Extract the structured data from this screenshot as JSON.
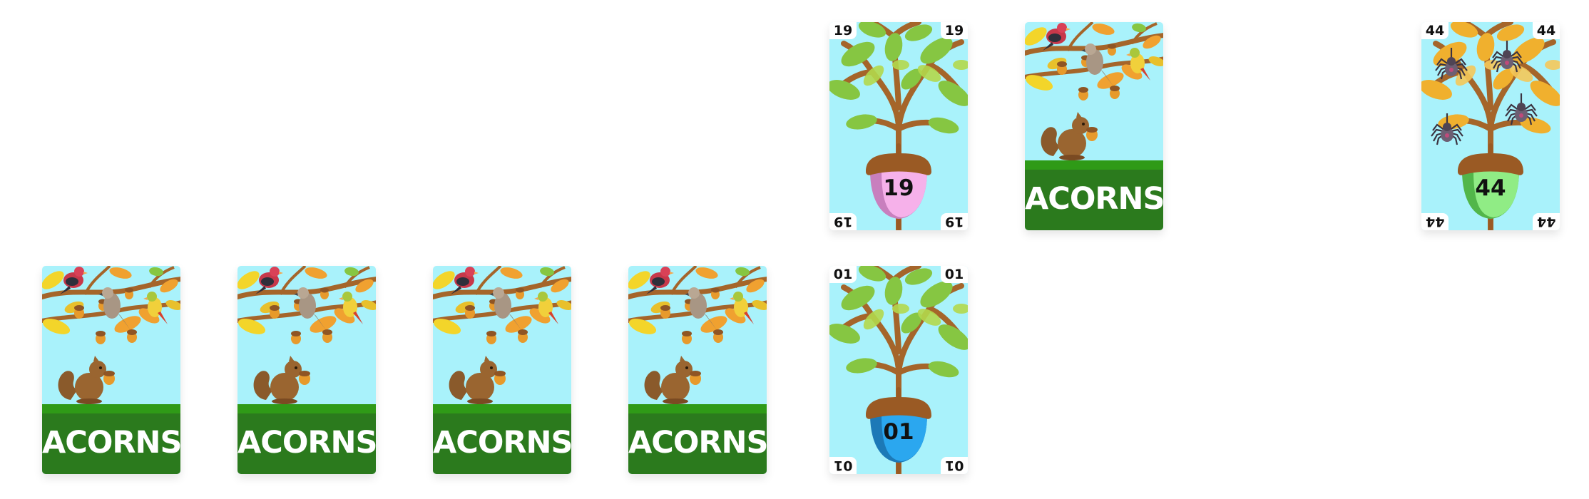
{
  "deck_label": "ACORNS",
  "face_down_cards": [
    {
      "id": "deck-1",
      "label": "ACORNS"
    },
    {
      "id": "deck-2",
      "label": "ACORNS"
    },
    {
      "id": "deck-3",
      "label": "ACORNS"
    },
    {
      "id": "deck-4",
      "label": "ACORNS"
    },
    {
      "id": "deck-top",
      "label": "ACORNS"
    }
  ],
  "face_up_cards": [
    {
      "id": "card-19",
      "number": "19",
      "acorn_color": "#f6b1ea",
      "acorn_shade": "#c87fbe",
      "leaf_color": "#86c642",
      "has_spiders": false
    },
    {
      "id": "card-01",
      "number": "01",
      "acorn_color": "#2ba7ef",
      "acorn_shade": "#1c79b7",
      "leaf_color": "#86c642",
      "has_spiders": false
    },
    {
      "id": "card-44",
      "number": "44",
      "acorn_color": "#90ec85",
      "acorn_shade": "#52b64a",
      "leaf_color": "#f0b02e",
      "has_spiders": true
    }
  ],
  "colors": {
    "sky": "#a9f2fb",
    "grass_band": "#2b7a1d",
    "grass_top": "#2f9a17",
    "branch": "#a5652a",
    "acorn_cap": "#9a5a24"
  }
}
